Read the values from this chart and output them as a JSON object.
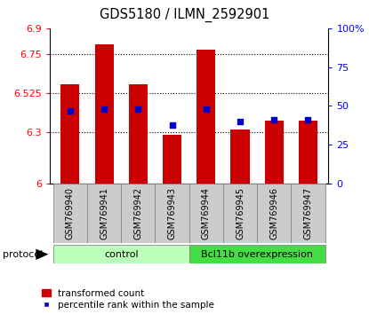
{
  "title": "GDS5180 / ILMN_2592901",
  "samples": [
    "GSM769940",
    "GSM769941",
    "GSM769942",
    "GSM769943",
    "GSM769944",
    "GSM769945",
    "GSM769946",
    "GSM769947"
  ],
  "bar_values": [
    6.575,
    6.805,
    6.575,
    6.285,
    6.775,
    6.315,
    6.365,
    6.365
  ],
  "percentile_values": [
    47,
    48,
    48,
    38,
    48,
    40,
    41,
    41
  ],
  "ylim_left": [
    6.0,
    6.9
  ],
  "ylim_right": [
    0,
    100
  ],
  "yticks_left": [
    6.0,
    6.3,
    6.525,
    6.75,
    6.9
  ],
  "yticks_right": [
    0,
    25,
    50,
    75,
    100
  ],
  "ytick_labels_left": [
    "6",
    "6.3",
    "6.525",
    "6.75",
    "6.9"
  ],
  "ytick_labels_right": [
    "0",
    "25",
    "50",
    "75",
    "100%"
  ],
  "bar_color": "#cc0000",
  "dot_color": "#0000cc",
  "bar_width": 0.55,
  "control_color": "#bbffbb",
  "overexpr_color": "#44dd44",
  "protocol_groups": [
    {
      "label": "control",
      "samples": [
        0,
        1,
        2,
        3
      ],
      "color": "#bbffbb"
    },
    {
      "label": "Bcl11b overexpression",
      "samples": [
        4,
        5,
        6,
        7
      ],
      "color": "#44dd44"
    }
  ],
  "protocol_label": "protocol",
  "legend_bar_label": "transformed count",
  "legend_dot_label": "percentile rank within the sample",
  "xlabel_box_color": "#cccccc",
  "grid_yticks": [
    6.3,
    6.525,
    6.75
  ]
}
